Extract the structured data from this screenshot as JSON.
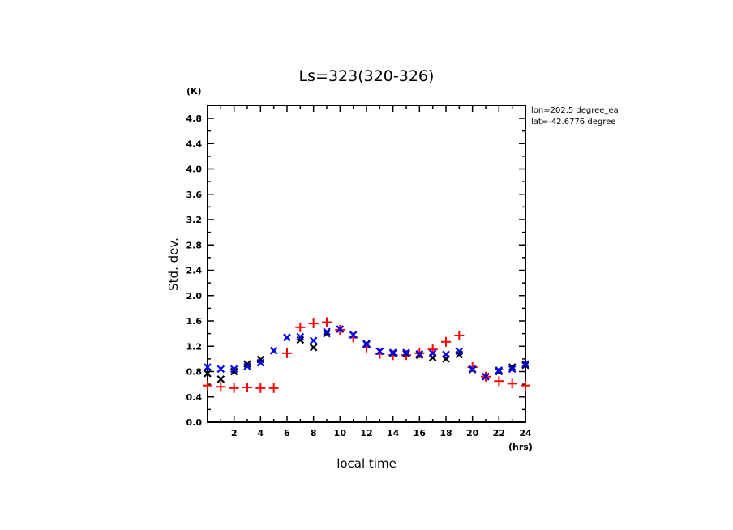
{
  "chart_data": {
    "type": "scatter",
    "title": "Ls=323(320-326)",
    "xlabel": "local time",
    "x_unit": "(hrs)",
    "ylabel": "Std. dev.",
    "y_unit": "(K)",
    "xlim": [
      0,
      24
    ],
    "ylim": [
      0.0,
      5.0
    ],
    "x_ticks": [
      2,
      4,
      6,
      8,
      10,
      12,
      14,
      16,
      18,
      20,
      22,
      24
    ],
    "x_minor_step": 1,
    "y_ticks": [
      "0.0",
      "0.4",
      "0.8",
      "1.2",
      "1.6",
      "2.0",
      "2.4",
      "2.8",
      "3.2",
      "3.6",
      "4.0",
      "4.4",
      "4.8"
    ],
    "y_minor_step": 0.2,
    "grid": false,
    "annotations": [
      "lon=202.5 degree_ea",
      "lat=-42.6776 degree"
    ],
    "x": [
      0,
      1,
      2,
      3,
      4,
      5,
      6,
      7,
      8,
      9,
      10,
      11,
      12,
      13,
      14,
      15,
      16,
      17,
      18,
      19,
      20,
      21,
      22,
      23,
      24
    ],
    "series": [
      {
        "name": "red-plus",
        "marker": "+",
        "color": "#ff0000",
        "values": [
          0.58,
          0.56,
          0.54,
          0.55,
          0.54,
          0.54,
          1.09,
          1.5,
          1.56,
          1.58,
          1.46,
          1.34,
          1.18,
          1.08,
          1.06,
          1.06,
          1.09,
          1.15,
          1.27,
          1.37,
          0.87,
          0.72,
          0.65,
          0.61,
          0.58
        ]
      },
      {
        "name": "black-x",
        "marker": "x",
        "color": "#000000",
        "values": [
          0.77,
          0.68,
          0.8,
          0.92,
          0.99,
          1.13,
          1.34,
          1.3,
          1.18,
          1.4,
          1.47,
          1.38,
          1.24,
          1.12,
          1.09,
          1.08,
          1.06,
          1.02,
          1.0,
          1.07,
          0.83,
          0.72,
          0.8,
          0.87,
          0.9
        ]
      },
      {
        "name": "blue-x",
        "marker": "x",
        "color": "#0000ff",
        "values": [
          0.87,
          0.84,
          0.84,
          0.88,
          0.94,
          1.13,
          1.34,
          1.35,
          1.29,
          1.43,
          1.47,
          1.38,
          1.23,
          1.12,
          1.1,
          1.1,
          1.08,
          1.09,
          1.07,
          1.12,
          0.84,
          0.72,
          0.82,
          0.84,
          0.92
        ]
      }
    ]
  }
}
